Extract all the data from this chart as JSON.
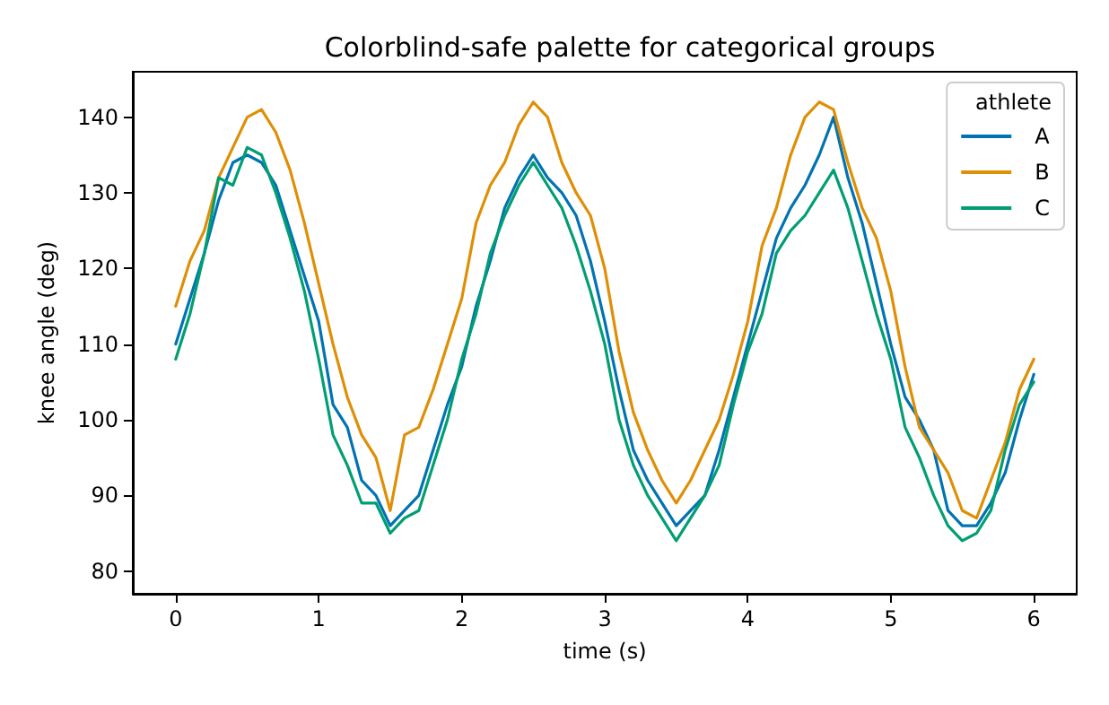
{
  "chart_data": {
    "type": "line",
    "title": "Colorblind-safe palette for categorical groups",
    "xlabel": "time (s)",
    "ylabel": "knee angle (deg)",
    "legend_title": "athlete",
    "legend": "top right",
    "grid": false,
    "x": [
      0,
      0.1,
      0.2,
      0.3,
      0.4,
      0.5,
      0.6,
      0.7,
      0.8,
      0.9,
      1,
      1.1,
      1.2,
      1.3,
      1.4,
      1.5,
      1.6,
      1.7,
      1.8,
      1.9,
      2,
      2.1,
      2.2,
      2.3,
      2.4,
      2.5,
      2.6,
      2.7,
      2.8,
      2.9,
      3,
      3.1,
      3.2,
      3.3,
      3.4,
      3.5,
      3.6,
      3.7,
      3.8,
      3.9,
      4,
      4.1,
      4.2,
      4.3,
      4.4,
      4.5,
      4.6,
      4.7,
      4.8,
      4.9,
      5,
      5.1,
      5.2,
      5.3,
      5.4,
      5.5,
      5.6,
      5.7,
      5.8,
      5.9,
      6
    ],
    "series": [
      {
        "name": "A",
        "color": "#0173b2",
        "values": [
          110,
          116,
          122,
          129,
          134,
          135,
          134,
          131,
          125,
          119,
          113,
          102,
          99,
          92,
          90,
          86,
          88,
          90,
          96,
          102,
          107,
          115,
          121,
          128,
          132,
          135,
          132,
          130,
          127,
          121,
          113,
          104,
          96,
          92,
          89,
          86,
          88,
          90,
          96,
          103,
          110,
          117,
          124,
          128,
          131,
          135,
          140,
          132,
          126,
          118,
          110,
          103,
          100,
          96,
          88,
          86,
          86,
          89,
          93,
          100,
          106
        ]
      },
      {
        "name": "B",
        "color": "#de8f05",
        "values": [
          115,
          121,
          125,
          132,
          136,
          140,
          141,
          138,
          133,
          126,
          118,
          110,
          103,
          98,
          95,
          88,
          98,
          99,
          104,
          110,
          116,
          126,
          131,
          134,
          139,
          142,
          140,
          134,
          130,
          127,
          120,
          109,
          101,
          96,
          92,
          89,
          92,
          96,
          100,
          106,
          113,
          123,
          128,
          135,
          140,
          142,
          141,
          134,
          128,
          124,
          117,
          107,
          99,
          96,
          93,
          88,
          87,
          92,
          97,
          104,
          108
        ]
      },
      {
        "name": "C",
        "color": "#029e73",
        "values": [
          108,
          114,
          122,
          132,
          131,
          136,
          135,
          130,
          124,
          117,
          108,
          98,
          94,
          89,
          89,
          85,
          87,
          88,
          94,
          100,
          108,
          114,
          122,
          127,
          131,
          134,
          131,
          128,
          123,
          117,
          110,
          100,
          94,
          90,
          87,
          84,
          87,
          90,
          94,
          102,
          109,
          114,
          122,
          125,
          127,
          130,
          133,
          128,
          121,
          114,
          108,
          99,
          95,
          90,
          86,
          84,
          85,
          88,
          96,
          102,
          105
        ]
      }
    ],
    "xlim": [
      -0.3,
      6.3
    ],
    "xticks": [
      0,
      1,
      2,
      3,
      4,
      5,
      6
    ],
    "ylim": [
      77,
      146
    ],
    "yticks": [
      80,
      90,
      100,
      110,
      120,
      130,
      140
    ]
  }
}
